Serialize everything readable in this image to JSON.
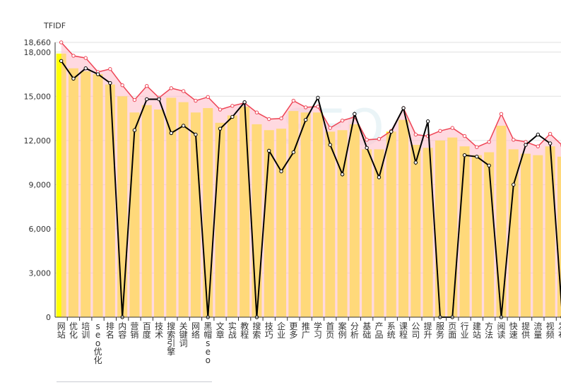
{
  "chart_data": {
    "type": "bar",
    "ylabel": "TFIDF",
    "ylim": [
      0,
      18660
    ],
    "yticks": [
      0,
      3000,
      6000,
      9000,
      12000,
      15000,
      18000,
      18660
    ],
    "ytick_labels": [
      "0",
      "3,000",
      "6,000",
      "9,000",
      "12,000",
      "15,000",
      "18,000",
      "18,660"
    ],
    "watermark": "SEO",
    "categories": [
      "网站",
      "优化",
      "培训",
      "seo优化",
      "排名",
      "内容",
      "营销",
      "百度",
      "技术",
      "搜索引擎",
      "关键词",
      "网络",
      "黑帽seo",
      "文章",
      "实战",
      "教程",
      "搜索",
      "技巧",
      "企业",
      "更多",
      "推广",
      "学习",
      "首页",
      "案例",
      "分析",
      "基础",
      "产品",
      "系统",
      "课程",
      "公司",
      "提升",
      "服务",
      "页面",
      "行业",
      "建站",
      "方法",
      "阅读",
      "快速",
      "提供",
      "流量",
      "视频",
      "发布"
    ],
    "series": [
      {
        "kind": "bar",
        "color": "#ffff00",
        "values": [
          17900,
          16900,
          16700,
          16500,
          15800,
          15000,
          13900,
          14400,
          14100,
          14900,
          14600,
          13900,
          14200,
          13200,
          13700,
          14300,
          13100,
          12700,
          12800,
          14000,
          13900,
          13900,
          12600,
          12700,
          13100,
          11400,
          11400,
          12600,
          13400,
          11700,
          11500,
          12000,
          12200,
          11600,
          11000,
          11200,
          13000,
          11400,
          11100,
          11000,
          11600,
          10900
        ]
      },
      {
        "kind": "area",
        "color": "#ee4455",
        "fill": "#ffc0cb",
        "values": [
          18660,
          17750,
          17600,
          16650,
          16850,
          15750,
          14750,
          15700,
          14900,
          15550,
          15350,
          14700,
          14950,
          14100,
          14350,
          14550,
          13900,
          13450,
          13500,
          14700,
          14250,
          14300,
          12850,
          13350,
          13600,
          12050,
          12100,
          12650,
          14200,
          12400,
          12300,
          12650,
          12850,
          12300,
          11550,
          11900,
          13800,
          12050,
          11900,
          11600,
          12450,
          11650
        ]
      },
      {
        "kind": "line",
        "color": "#000000",
        "values": [
          17400,
          16200,
          16900,
          16500,
          15900,
          0,
          12700,
          14800,
          14800,
          12500,
          13000,
          12400,
          0,
          12800,
          13600,
          14600,
          0,
          11300,
          9900,
          11200,
          13400,
          14900,
          11700,
          9700,
          13800,
          11500,
          9500,
          12600,
          14200,
          10500,
          13300,
          0,
          0,
          11000,
          10900,
          10300,
          0,
          9000,
          11700,
          12400,
          11800,
          0
        ]
      }
    ]
  }
}
